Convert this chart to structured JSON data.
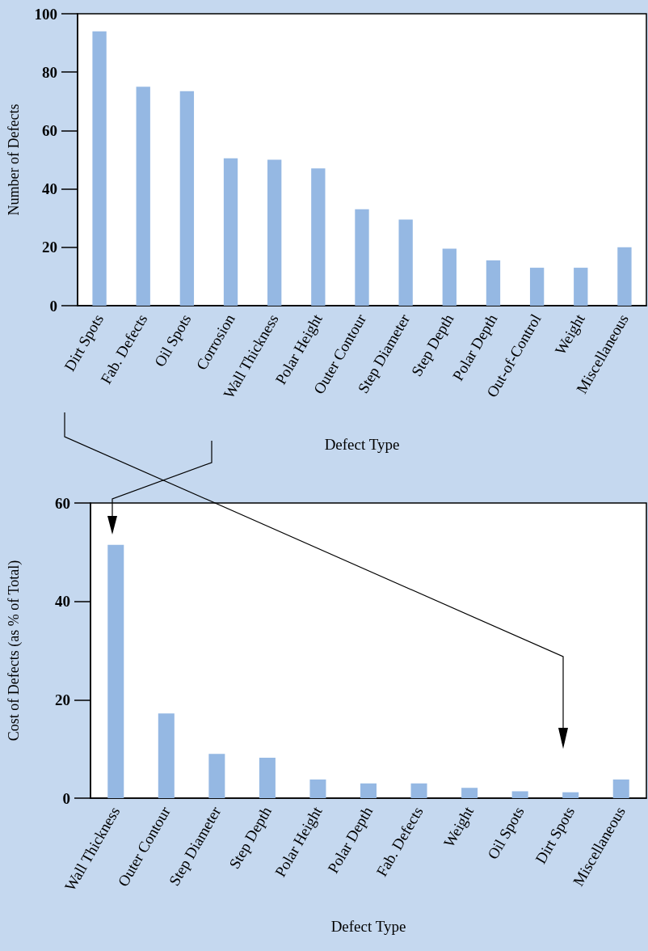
{
  "chart_data": [
    {
      "type": "bar",
      "categories": [
        "Dirt Spots",
        "Fab. Defects",
        "Oil Spots",
        "Corrosion",
        "Wall Thickness",
        "Polar Height",
        "Outer Contour",
        "Step Diameter",
        "Step Depth",
        "Polar Depth",
        "Out-of-Control",
        "Weight",
        "Miscellaneous"
      ],
      "values": [
        94,
        75,
        73.5,
        50.5,
        50,
        47,
        33,
        29.5,
        19.5,
        15.5,
        13,
        13,
        20
      ],
      "color": "#95b8e3",
      "xlabel": "Defect Type",
      "ylabel": "Number of Defects",
      "ylim": [
        0,
        100
      ],
      "yticks": [
        0,
        20,
        40,
        60,
        80,
        100
      ],
      "grid": false
    },
    {
      "type": "bar",
      "categories": [
        "Wall Thickness",
        "Outer Contour",
        "Step Diameter",
        "Step Depth",
        "Polar Height",
        "Polar Depth",
        "Fab. Defects",
        "Weight",
        "Oil Spots",
        "Dirt Spots",
        "Miscellaneous"
      ],
      "values": [
        51.5,
        17.2,
        9,
        8.2,
        3.8,
        3,
        3,
        2.1,
        1.4,
        1.2,
        3.8
      ],
      "color": "#95b8e3",
      "xlabel": "Defect Type",
      "ylabel": "Cost of Defects (as % of Total)",
      "ylim": [
        0,
        60
      ],
      "yticks": [
        0,
        20,
        40,
        60
      ],
      "grid": false
    }
  ]
}
